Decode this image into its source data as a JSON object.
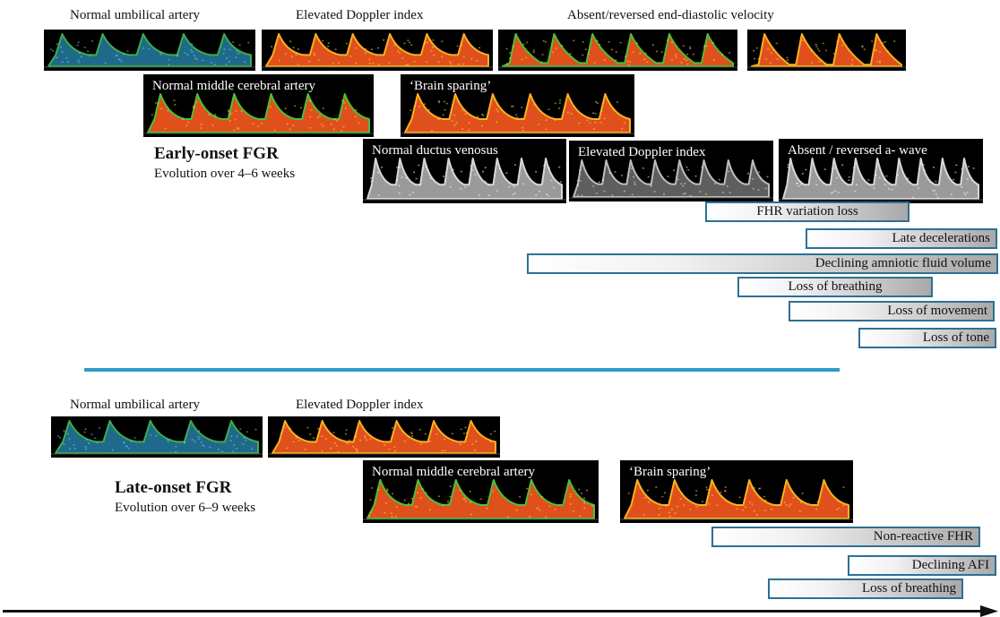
{
  "early": {
    "title": "Early-onset FGR",
    "subtitle": "Evolution over 4–6 weeks",
    "ua_labels": [
      "Normal umbilical artery",
      "Elevated Doppler index",
      "Absent/reversed end-diastolic velocity"
    ],
    "mca_labels": [
      "Normal middle cerebral artery",
      "‘Brain sparing’"
    ],
    "dv_labels": [
      "Normal ductus venosus",
      "Elevated Doppler index",
      "Absent / reversed a- wave"
    ],
    "bars": [
      "FHR variation loss",
      "Late decelerations",
      "Declining amniotic fluid volume",
      "Loss of breathing",
      "Loss of movement",
      "Loss of tone"
    ]
  },
  "late": {
    "title": "Late-onset FGR",
    "subtitle": "Evolution over 6–9 weeks",
    "ua_labels": [
      "Normal umbilical artery",
      "Elevated Doppler index"
    ],
    "mca_labels": [
      "Normal middle cerebral artery",
      "‘Brain sparing’"
    ],
    "bars": [
      "Non-reactive FHR",
      "Declining AFI",
      "Loss of breathing"
    ]
  },
  "colors": {
    "bar_border": "#2c7096",
    "divider": "#2f9ac8",
    "waveform_background": "#000000",
    "umbilical_normal": "#1f6a8a",
    "doppler_orange": "#e0501c",
    "ductus_gray": "#d8d8d8"
  }
}
